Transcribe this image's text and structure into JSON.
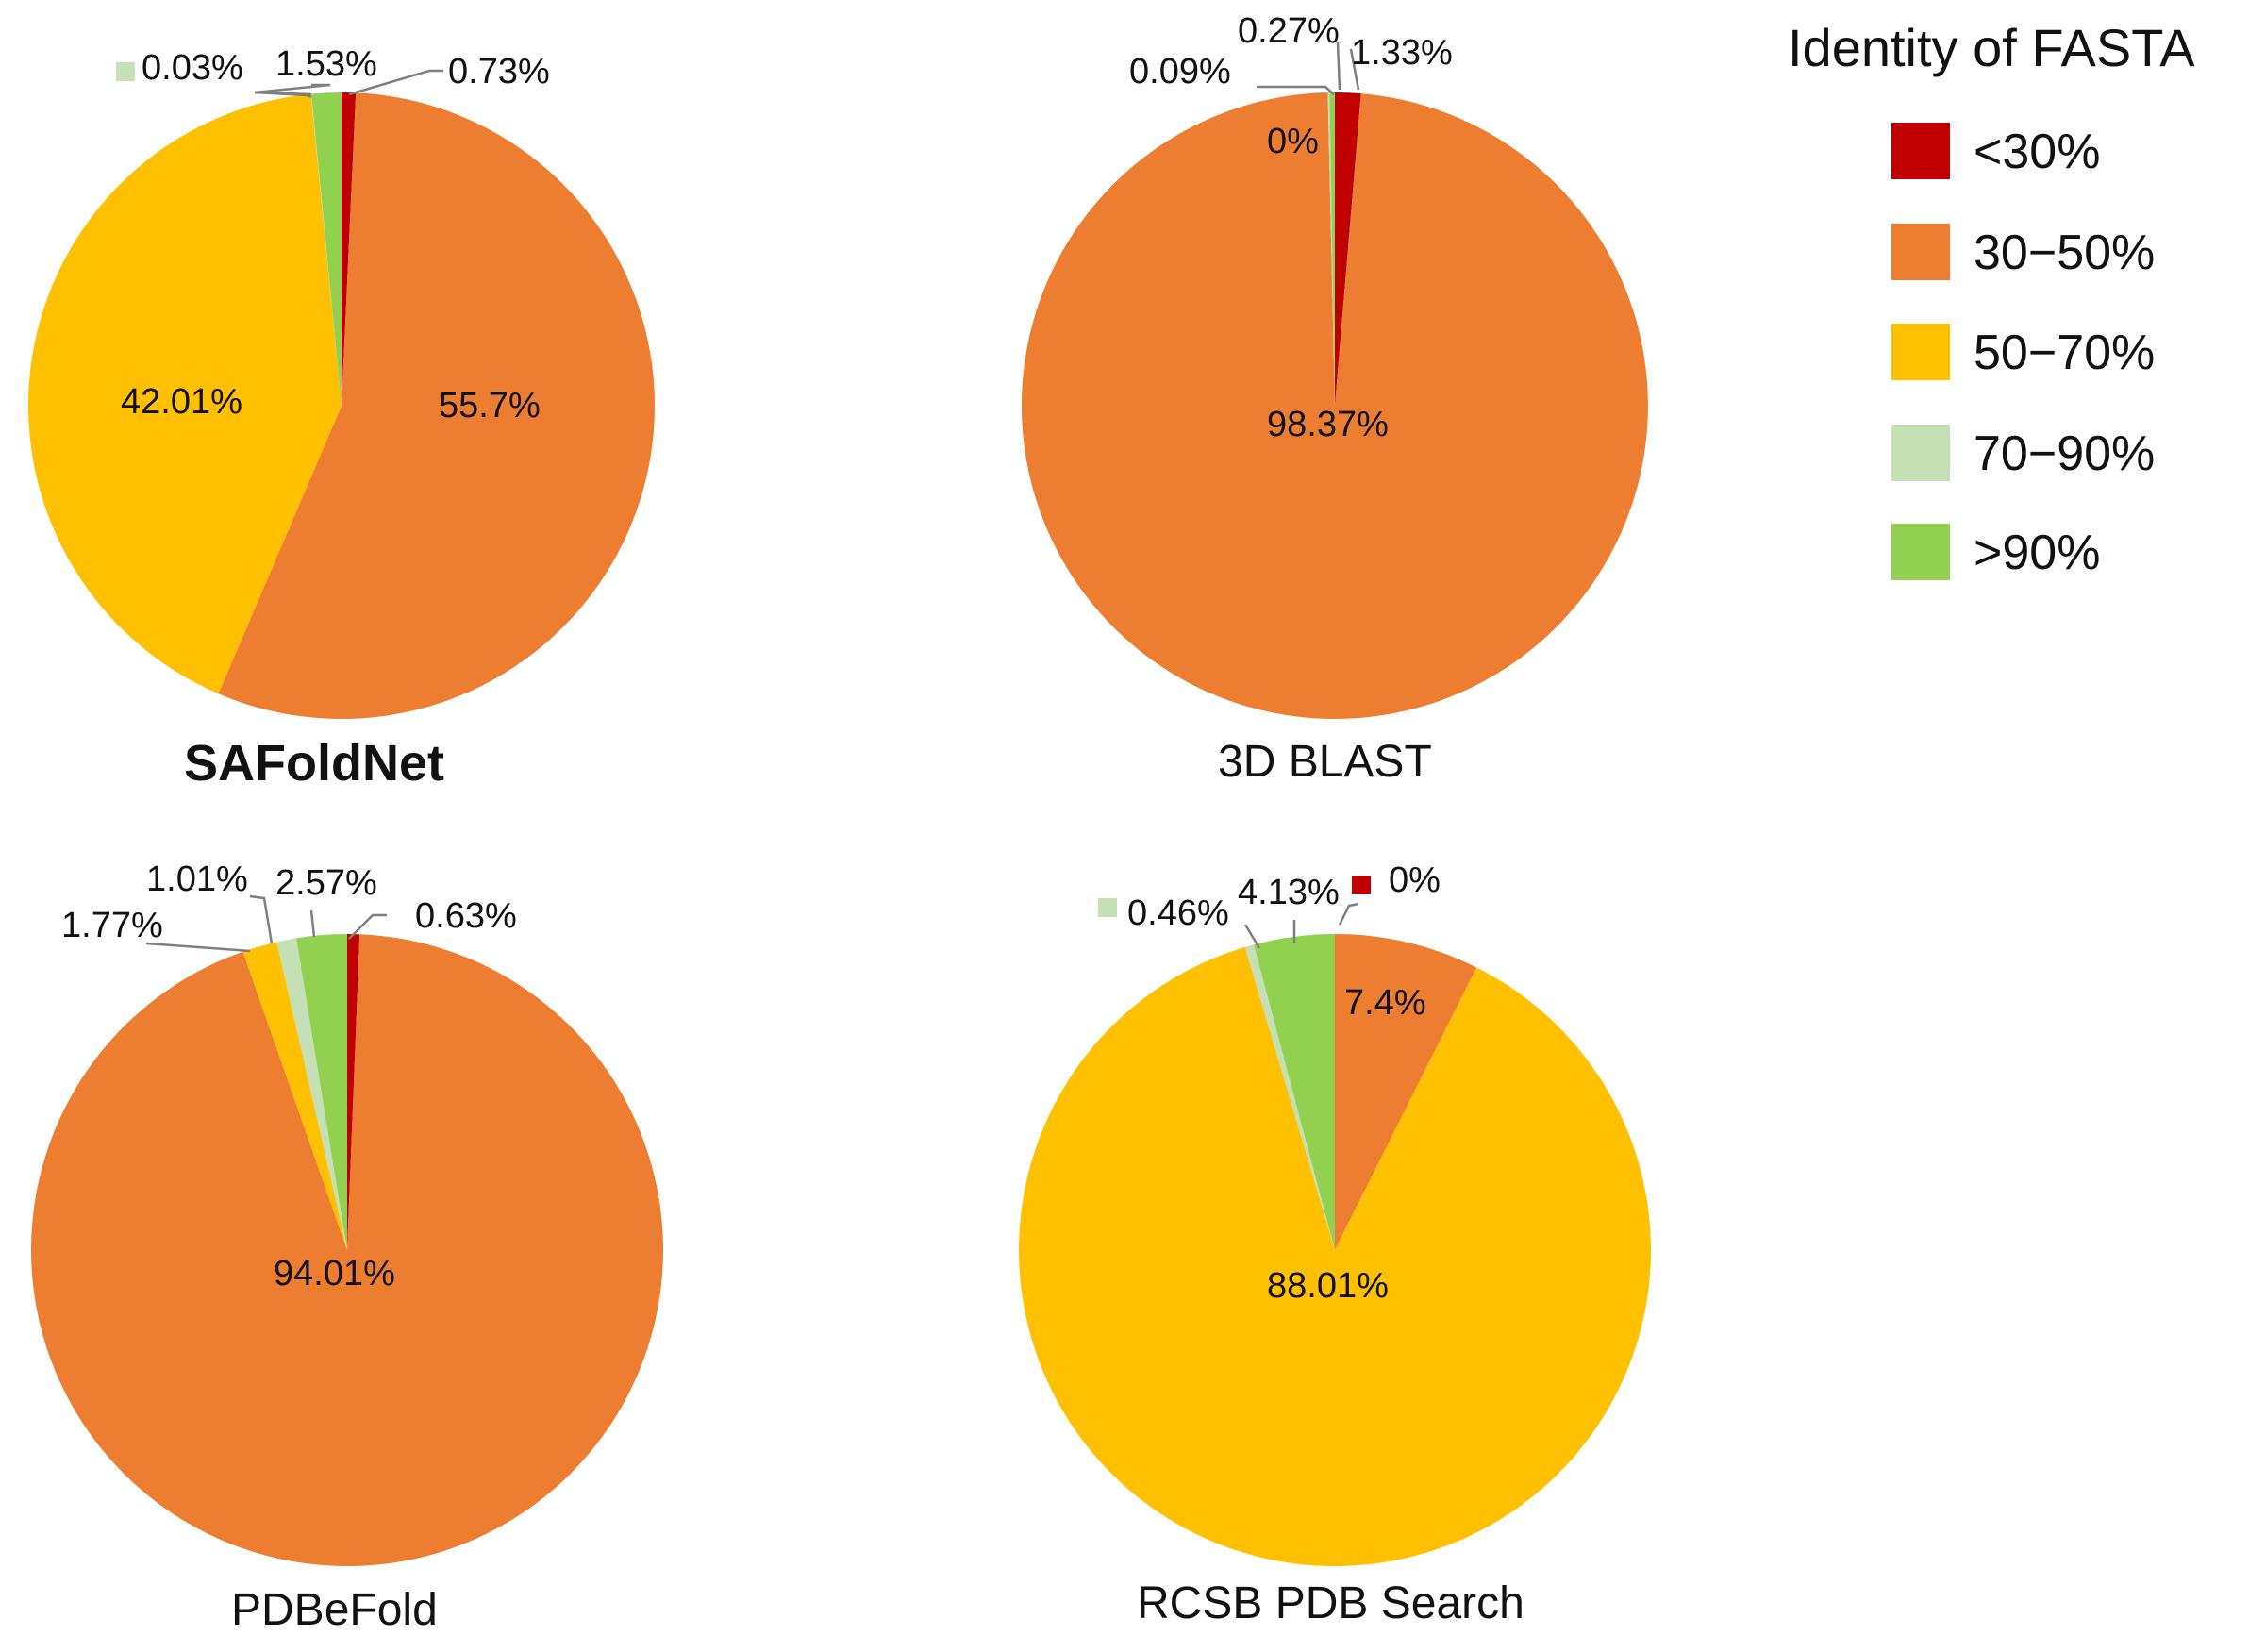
{
  "legend": {
    "title": "Identity of FASTA",
    "items": [
      {
        "label": "<30%",
        "color": "#c00000"
      },
      {
        "label": "30−50%",
        "color": "#ed7d31"
      },
      {
        "label": "50−70%",
        "color": "#ffc000"
      },
      {
        "label": "70−90%",
        "color": "#c5e0b4"
      },
      {
        "label": ">90%",
        "color": "#92d050"
      }
    ]
  },
  "chart_data": [
    {
      "type": "pie",
      "title": "SAFoldNet",
      "categories": [
        "<30%",
        "30−50%",
        "50−70%",
        "70−90%",
        ">90%"
      ],
      "values": [
        0.73,
        55.7,
        42.01,
        0.03,
        1.53
      ],
      "value_labels": [
        "0.73%",
        "55.7%",
        "42.01%",
        "0.03%",
        "1.53%"
      ]
    },
    {
      "type": "pie",
      "title": "3D BLAST",
      "categories": [
        "<30%",
        "30−50%",
        "50−70%",
        "70−90%",
        ">90%"
      ],
      "values": [
        1.33,
        98.37,
        0,
        0.09,
        0.27
      ],
      "value_labels": [
        "1.33%",
        "98.37%",
        "0%",
        "0.09%",
        "0.27%"
      ]
    },
    {
      "type": "pie",
      "title": "PDBeFold",
      "categories": [
        "<30%",
        "30−50%",
        "50−70%",
        "70−90%",
        ">90%"
      ],
      "values": [
        0.63,
        94.01,
        1.77,
        1.01,
        2.57
      ],
      "value_labels": [
        "0.63%",
        "94.01%",
        "1.77%",
        "1.01%",
        "2.57%"
      ]
    },
    {
      "type": "pie",
      "title": "RCSB PDB Search",
      "categories": [
        "<30%",
        "30−50%",
        "50−70%",
        "70−90%",
        ">90%"
      ],
      "values": [
        0,
        7.4,
        88.01,
        0.46,
        4.13
      ],
      "value_labels": [
        "0%",
        "7.4%",
        "88.01%",
        "0.46%",
        "4.13%"
      ]
    }
  ]
}
